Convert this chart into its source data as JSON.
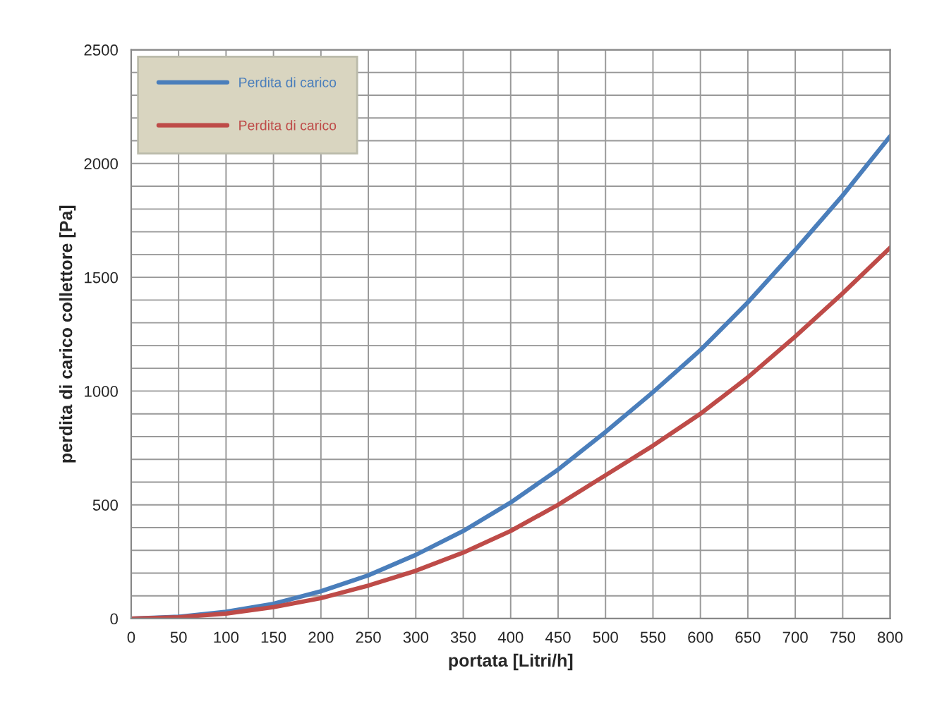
{
  "chart_data": {
    "type": "line",
    "xlabel": "portata [Litri/h]",
    "ylabel": "perdita di carico collettore [Pa]",
    "x": [
      0,
      50,
      100,
      150,
      200,
      250,
      300,
      350,
      400,
      450,
      500,
      550,
      600,
      650,
      700,
      750,
      800
    ],
    "series": [
      {
        "name": "Perdita di carico",
        "color": "#4a7ebb",
        "values": [
          0,
          8,
          30,
          65,
          120,
          190,
          280,
          385,
          510,
          655,
          820,
          995,
          1180,
          1390,
          1620,
          1860,
          2120
        ]
      },
      {
        "name": "Perdita di carico",
        "color": "#be4b48",
        "values": [
          0,
          6,
          22,
          50,
          90,
          145,
          210,
          290,
          385,
          500,
          630,
          760,
          900,
          1060,
          1240,
          1430,
          1630
        ]
      }
    ],
    "xlim": [
      0,
      800
    ],
    "xticks": [
      0,
      50,
      100,
      150,
      200,
      250,
      300,
      350,
      400,
      450,
      500,
      550,
      600,
      650,
      700,
      750,
      800
    ],
    "ylim": [
      0,
      2500
    ],
    "yticks": [
      0,
      {
        "value": 100,
        "label": null
      },
      {
        "value": 200,
        "label": null
      },
      {
        "value": 300,
        "label": null
      },
      {
        "value": 400,
        "label": null
      },
      500,
      {
        "value": 600,
        "label": null
      },
      {
        "value": 700,
        "label": null
      },
      {
        "value": 800,
        "label": null
      },
      {
        "value": 900,
        "label": null
      },
      1000,
      {
        "value": 1100,
        "label": null
      },
      {
        "value": 1200,
        "label": null
      },
      {
        "value": 1300,
        "label": null
      },
      {
        "value": 1400,
        "label": null
      },
      1500,
      {
        "value": 1600,
        "label": null
      },
      {
        "value": 1700,
        "label": null
      },
      {
        "value": 1800,
        "label": null
      },
      {
        "value": 1900,
        "label": null
      },
      2000,
      {
        "value": 2100,
        "label": null
      },
      {
        "value": 2200,
        "label": null
      },
      {
        "value": 2300,
        "label": null
      },
      {
        "value": 2400,
        "label": null
      },
      2500
    ],
    "grid": true,
    "legend": "top left",
    "marker": "none",
    "line_style": "solid"
  }
}
